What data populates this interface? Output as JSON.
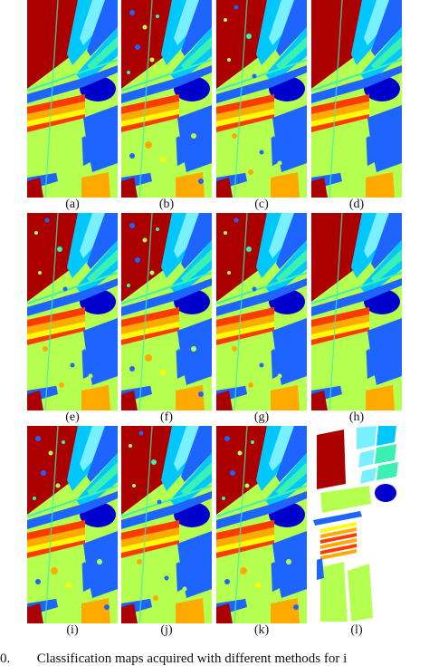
{
  "figure": {
    "panel_labels": [
      "(a)",
      "(b)",
      "(c)",
      "(d)",
      "(e)",
      "(f)",
      "(g)",
      "(h)",
      "(i)",
      "(j)",
      "(k)",
      "(l)"
    ],
    "caption_prefix": "0.",
    "caption_text": "Classification maps acquired with different methods for i"
  },
  "colors": {
    "dark_red": "#aa0000",
    "navy": "#0000cc",
    "blue": "#1e64ff",
    "cyan": "#00c8ff",
    "light_cyan": "#78f0ff",
    "teal_green": "#3cf0b4",
    "lime": "#b4ff50",
    "yellow": "#ffff00",
    "orange": "#ffaa00",
    "red_orange": "#ff3c00"
  }
}
